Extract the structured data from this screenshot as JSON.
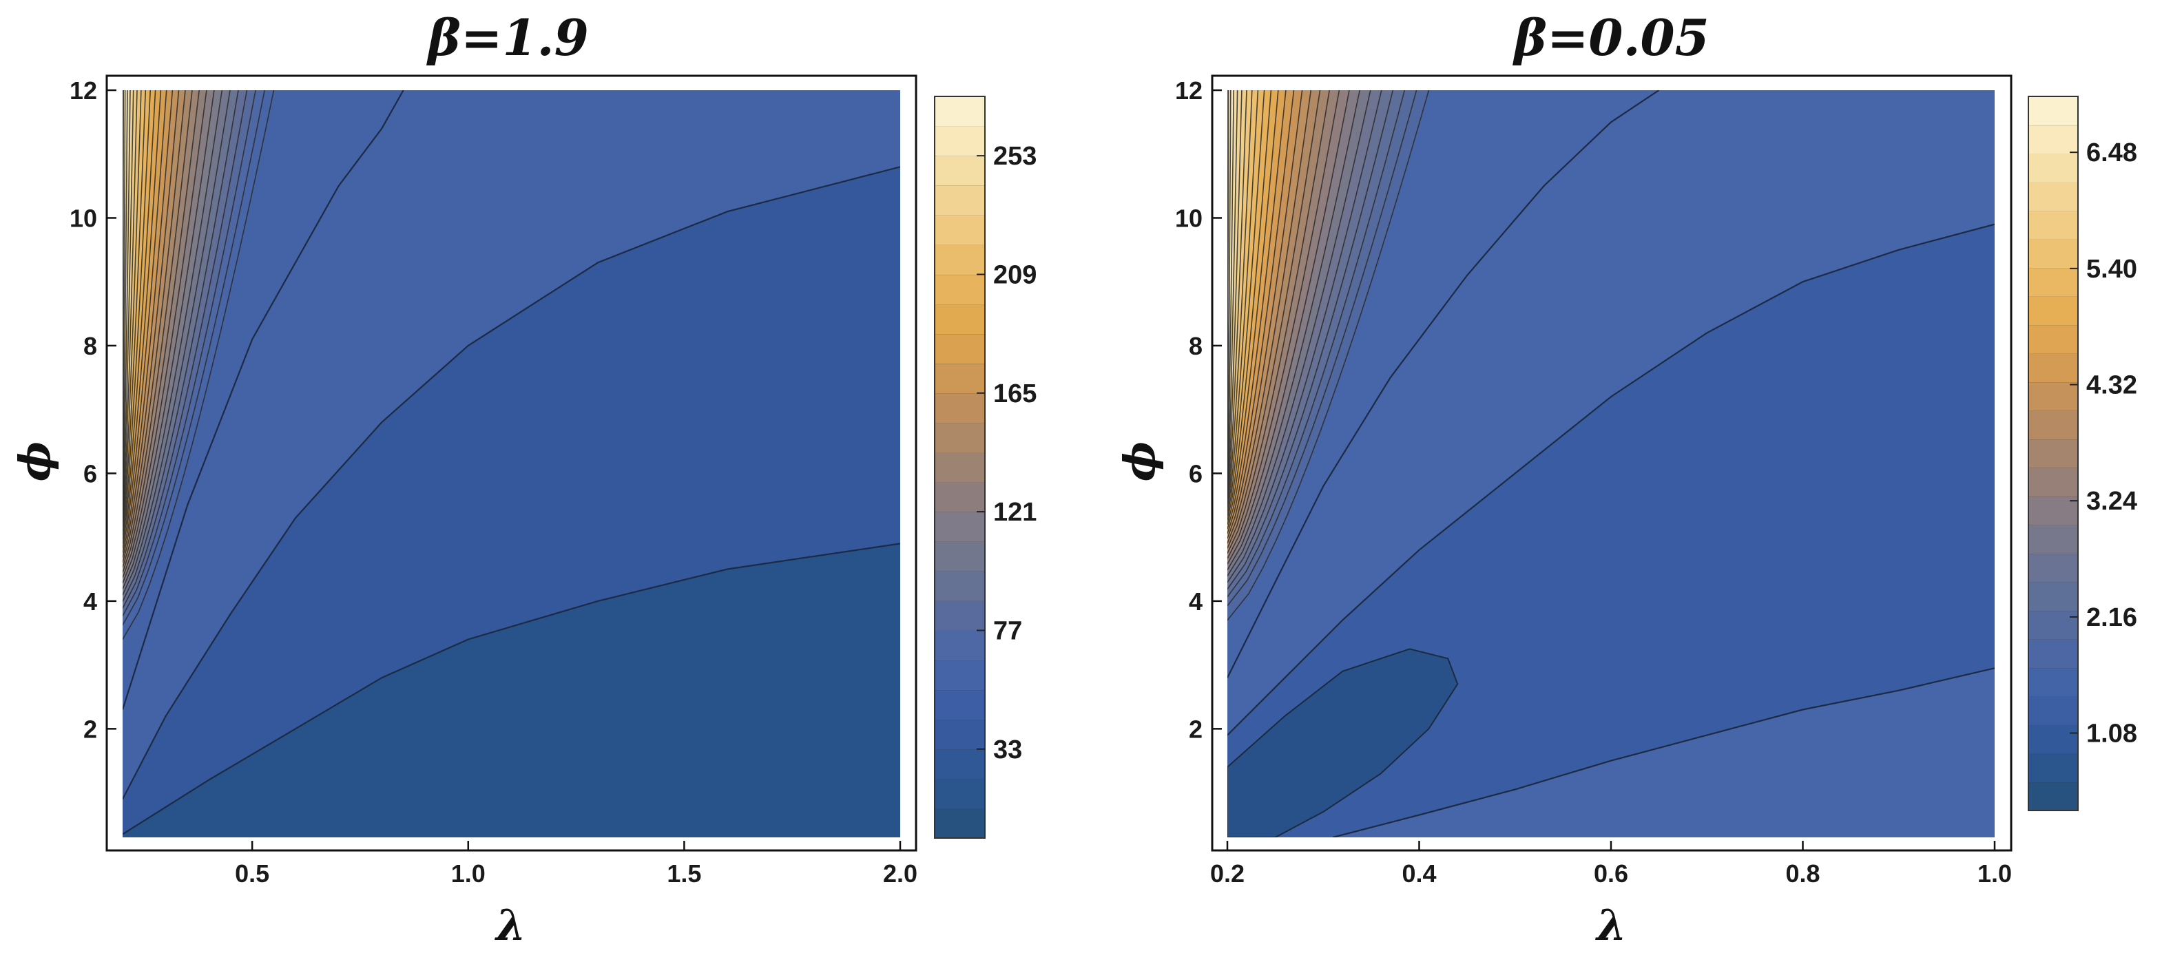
{
  "chart_data": [
    {
      "type": "contour",
      "title_symbol": "β",
      "title_value": "=1.9",
      "xlabel": "λ",
      "ylabel": "ϕ",
      "xlim": [
        0.2,
        2.0
      ],
      "ylim": [
        0.3,
        12.0
      ],
      "x_ticks": [
        "0.5",
        "1.0",
        "1.5",
        "2.0"
      ],
      "x_tick_values": [
        0.5,
        1.0,
        1.5,
        2.0
      ],
      "y_ticks": [
        "2",
        "4",
        "6",
        "8",
        "10",
        "12"
      ],
      "y_tick_values": [
        2,
        4,
        6,
        8,
        10,
        12
      ],
      "colorbar": {
        "ticks": [
          "33",
          "77",
          "121",
          "165",
          "209",
          "253"
        ],
        "tick_values": [
          33,
          77,
          121,
          165,
          209,
          253
        ],
        "range": [
          0,
          275
        ],
        "levels": 25
      },
      "contour_lines": [
        [
          [
            0.2,
            0.35
          ],
          [
            0.4,
            1.2
          ],
          [
            0.6,
            2.0
          ],
          [
            0.8,
            2.8
          ],
          [
            1.0,
            3.4
          ],
          [
            1.3,
            4.0
          ],
          [
            1.6,
            4.5
          ],
          [
            2.0,
            4.9
          ]
        ],
        [
          [
            0.2,
            0.9
          ],
          [
            0.3,
            2.2
          ],
          [
            0.45,
            3.8
          ],
          [
            0.6,
            5.3
          ],
          [
            0.8,
            6.8
          ],
          [
            1.0,
            8.0
          ],
          [
            1.3,
            9.3
          ],
          [
            1.6,
            10.1
          ],
          [
            2.0,
            10.8
          ]
        ],
        [
          [
            0.2,
            2.3
          ],
          [
            0.35,
            5.5
          ],
          [
            0.5,
            8.1
          ],
          [
            0.7,
            10.5
          ],
          [
            0.8,
            11.4
          ],
          [
            0.85,
            12.0
          ]
        ],
        [
          [
            0.2,
            3.4
          ],
          [
            0.3,
            6.5
          ],
          [
            0.4,
            9.2
          ],
          [
            0.5,
            11.3
          ],
          [
            0.55,
            12.0
          ]
        ]
      ],
      "band_colors": [
        "#27517f",
        "#2c5793",
        "#35599c",
        "#3e5fa6",
        "#4a67a8",
        "#5a6b9c",
        "#6b7590",
        "#7d7b89",
        "#917f7a",
        "#a8876a",
        "#c08f5c",
        "#d59d51",
        "#e2a94f",
        "#e8b660",
        "#edc67a",
        "#f2d696",
        "#f7e4b2",
        "#fbf0cd"
      ]
    },
    {
      "type": "contour",
      "title_symbol": "β",
      "title_value": "=0.05",
      "xlabel": "λ",
      "ylabel": "ϕ",
      "xlim": [
        0.2,
        1.0
      ],
      "ylim": [
        0.3,
        12.0
      ],
      "x_ticks": [
        "0.2",
        "0.4",
        "0.6",
        "0.8",
        "1.0"
      ],
      "x_tick_values": [
        0.2,
        0.4,
        0.6,
        0.8,
        1.0
      ],
      "y_ticks": [
        "2",
        "4",
        "6",
        "8",
        "10",
        "12"
      ],
      "y_tick_values": [
        2,
        4,
        6,
        8,
        10,
        12
      ],
      "colorbar": {
        "ticks": [
          "1.08",
          "2.16",
          "3.24",
          "4.32",
          "5.40",
          "6.48"
        ],
        "tick_values": [
          1.08,
          2.16,
          3.24,
          4.32,
          5.4,
          6.48
        ],
        "range": [
          0.36,
          7.0
        ],
        "levels": 25
      },
      "inner_region": [
        [
          0.2,
          1.4
        ],
        [
          0.26,
          2.2
        ],
        [
          0.32,
          2.9
        ],
        [
          0.39,
          3.25
        ],
        [
          0.43,
          3.1
        ],
        [
          0.44,
          2.7
        ],
        [
          0.41,
          2.0
        ],
        [
          0.36,
          1.3
        ],
        [
          0.3,
          0.7
        ],
        [
          0.25,
          0.3
        ],
        [
          0.2,
          0.3
        ]
      ],
      "contour_lines": [
        [
          [
            0.31,
            0.3
          ],
          [
            0.4,
            0.65
          ],
          [
            0.5,
            1.05
          ],
          [
            0.6,
            1.5
          ],
          [
            0.7,
            1.9
          ],
          [
            0.8,
            2.3
          ],
          [
            0.9,
            2.6
          ],
          [
            1.0,
            2.95
          ]
        ],
        [
          [
            0.2,
            1.9
          ],
          [
            0.26,
            2.8
          ],
          [
            0.32,
            3.7
          ],
          [
            0.4,
            4.8
          ],
          [
            0.5,
            6.0
          ],
          [
            0.6,
            7.2
          ],
          [
            0.7,
            8.2
          ],
          [
            0.8,
            9.0
          ],
          [
            0.9,
            9.5
          ],
          [
            1.0,
            9.9
          ]
        ],
        [
          [
            0.2,
            2.8
          ],
          [
            0.25,
            4.3
          ],
          [
            0.3,
            5.8
          ],
          [
            0.37,
            7.5
          ],
          [
            0.45,
            9.1
          ],
          [
            0.53,
            10.5
          ],
          [
            0.6,
            11.5
          ],
          [
            0.65,
            12.0
          ]
        ],
        [
          [
            0.2,
            3.7
          ],
          [
            0.24,
            5.5
          ],
          [
            0.28,
            7.3
          ],
          [
            0.33,
            9.1
          ],
          [
            0.37,
            10.6
          ],
          [
            0.41,
            12.0
          ]
        ]
      ],
      "band_colors": [
        "#27517f",
        "#2c5793",
        "#3a5ea3",
        "#4665a9",
        "#52699f",
        "#5f6f98",
        "#707590",
        "#857c84",
        "#9a8175",
        "#b18966",
        "#c8935a",
        "#dba052",
        "#e6ae55",
        "#ebbb68",
        "#efca80",
        "#f3d899",
        "#f8e6b5",
        "#fcf1cf"
      ]
    }
  ]
}
